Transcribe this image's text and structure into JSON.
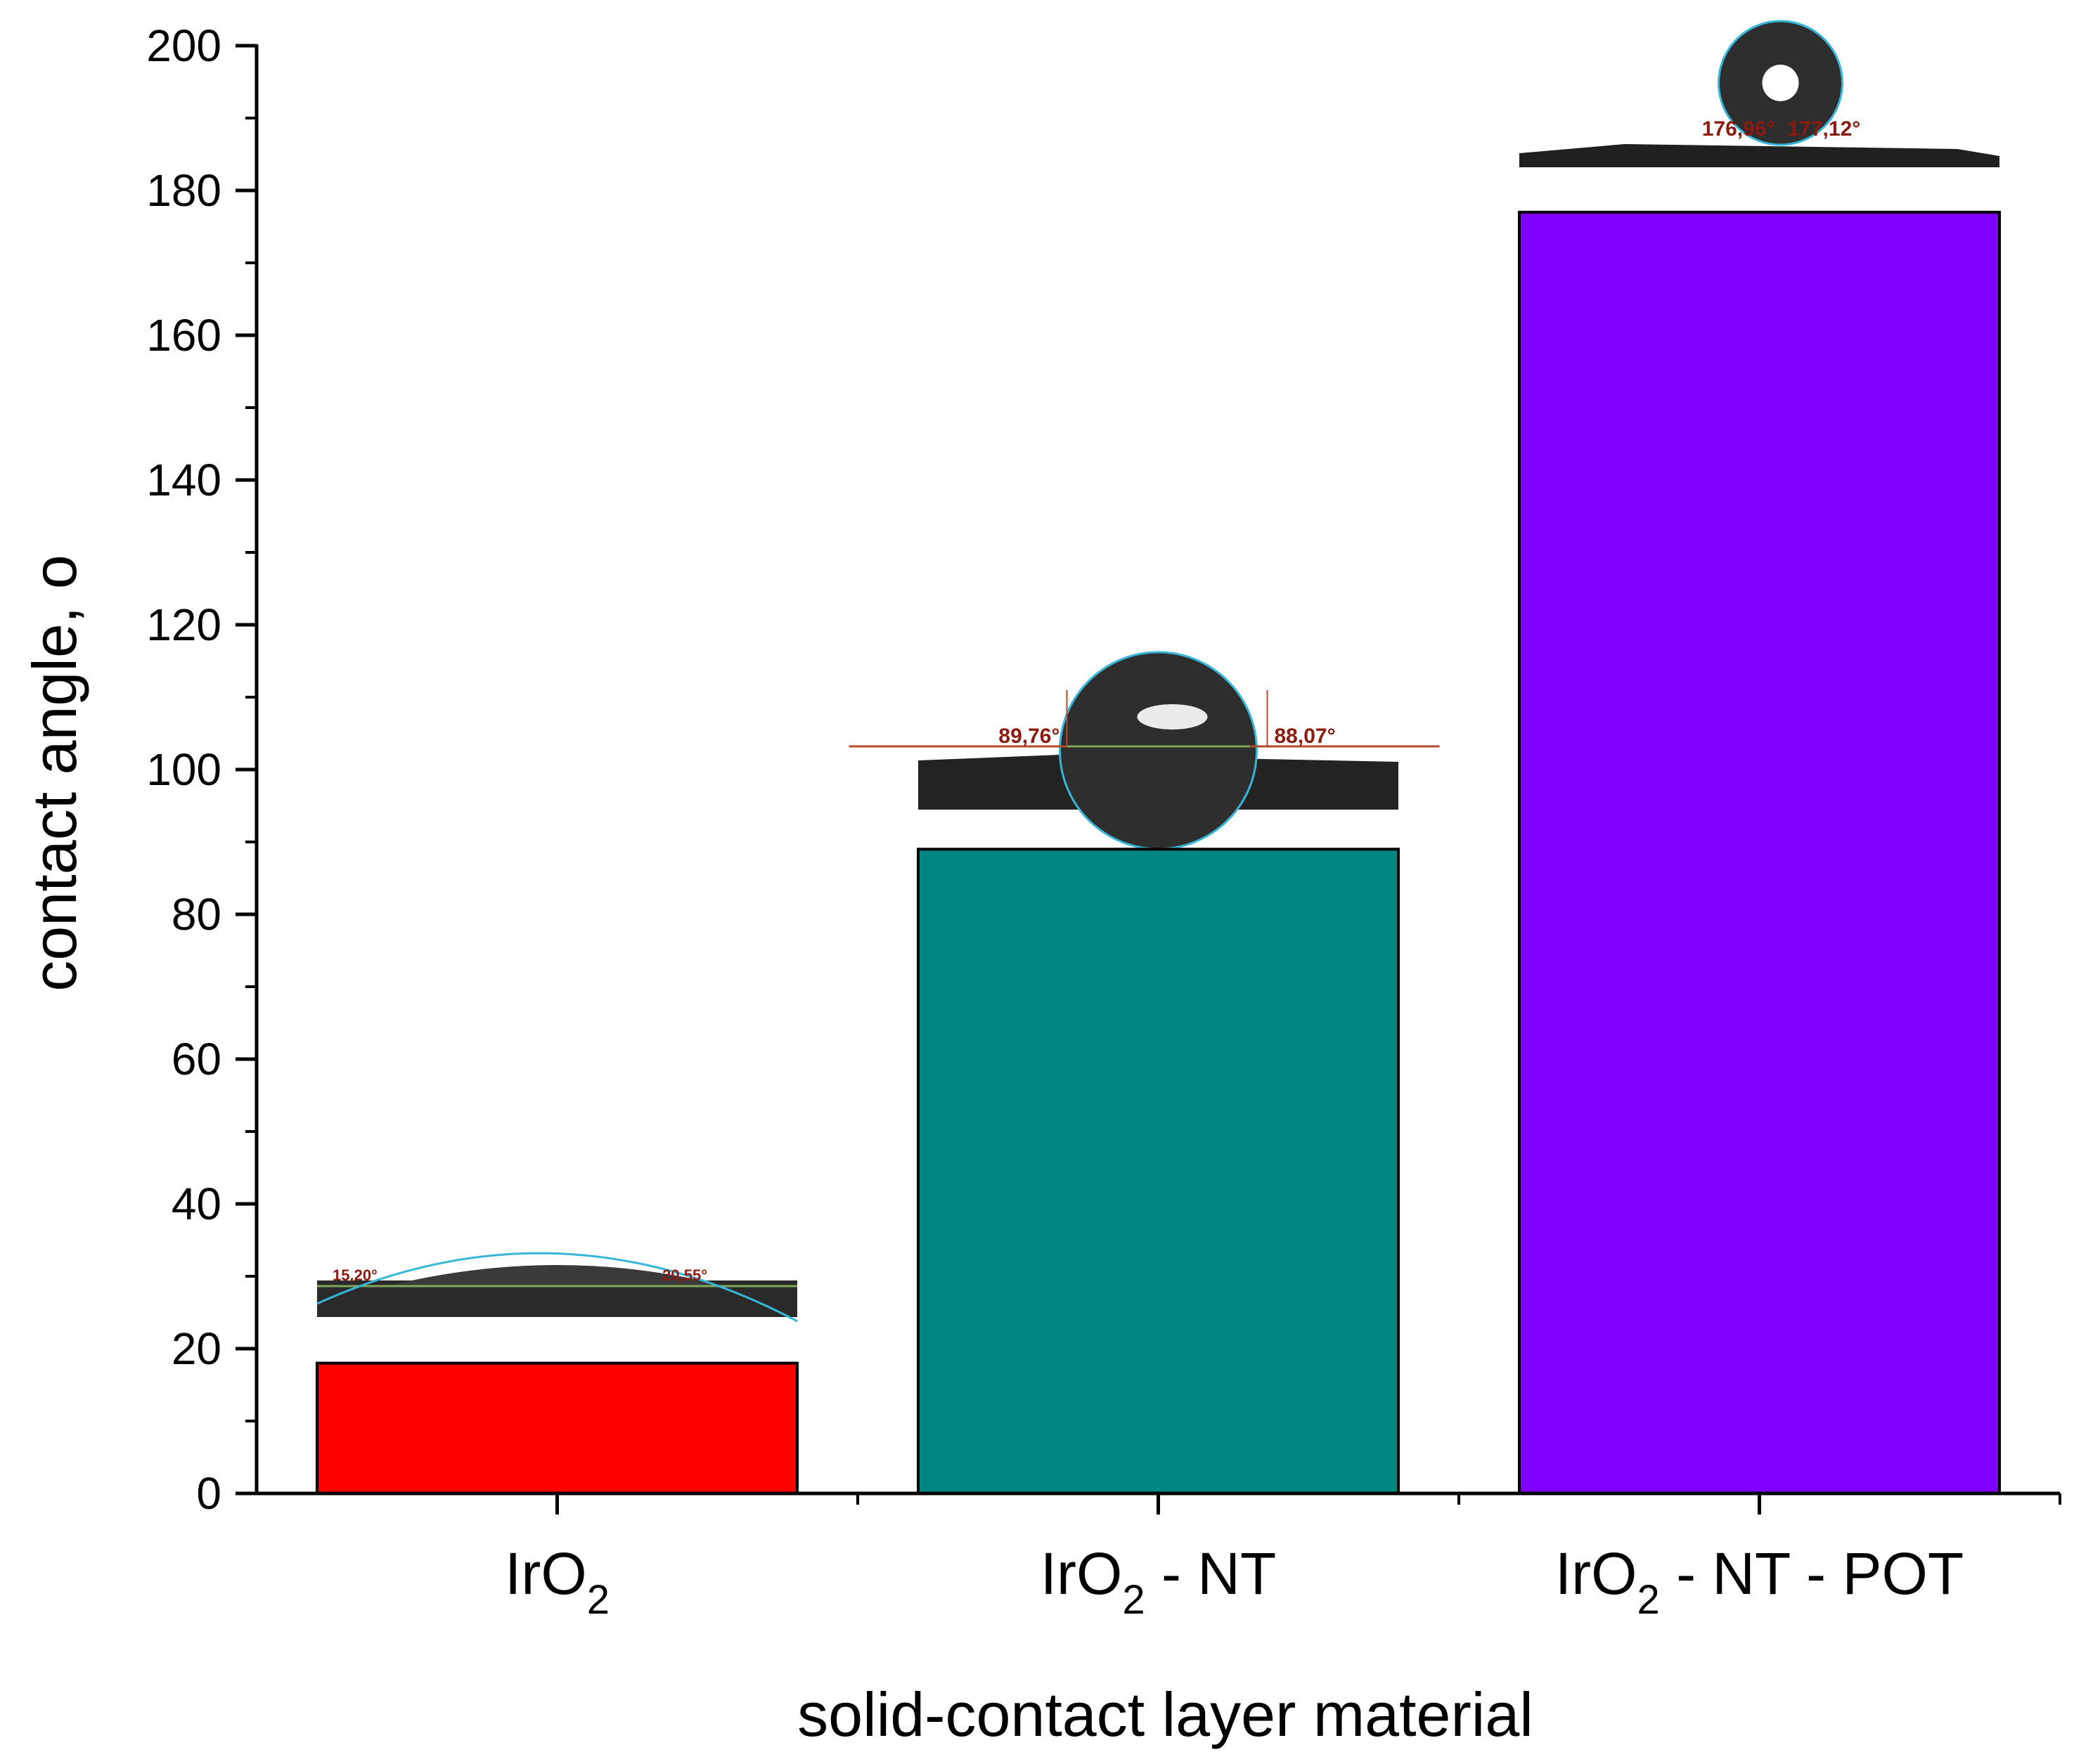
{
  "chart_data": {
    "type": "bar",
    "categories": [
      {
        "base": "IrO",
        "sub": "2",
        "rest": ""
      },
      {
        "base": "IrO",
        "sub": "2",
        "rest": " - NT"
      },
      {
        "base": "IrO",
        "sub": "2",
        "rest": " - NT - POT"
      }
    ],
    "values": [
      18,
      89,
      177
    ],
    "colors": [
      "#ff0000",
      "#008784",
      "#8000ff"
    ],
    "ylim": [
      0,
      200
    ],
    "yticks": [
      0,
      20,
      40,
      60,
      80,
      100,
      120,
      140,
      160,
      180,
      200
    ],
    "ylabel": "contact angle, o",
    "xlabel": "solid-contact layer material",
    "droplet_insets": [
      {
        "left_angle": "15,20°",
        "right_angle": "20,55°"
      },
      {
        "left_angle": "89,76°",
        "right_angle": "88,07°"
      },
      {
        "left_angle": "176,96°",
        "right_angle": "177,12°"
      }
    ]
  }
}
